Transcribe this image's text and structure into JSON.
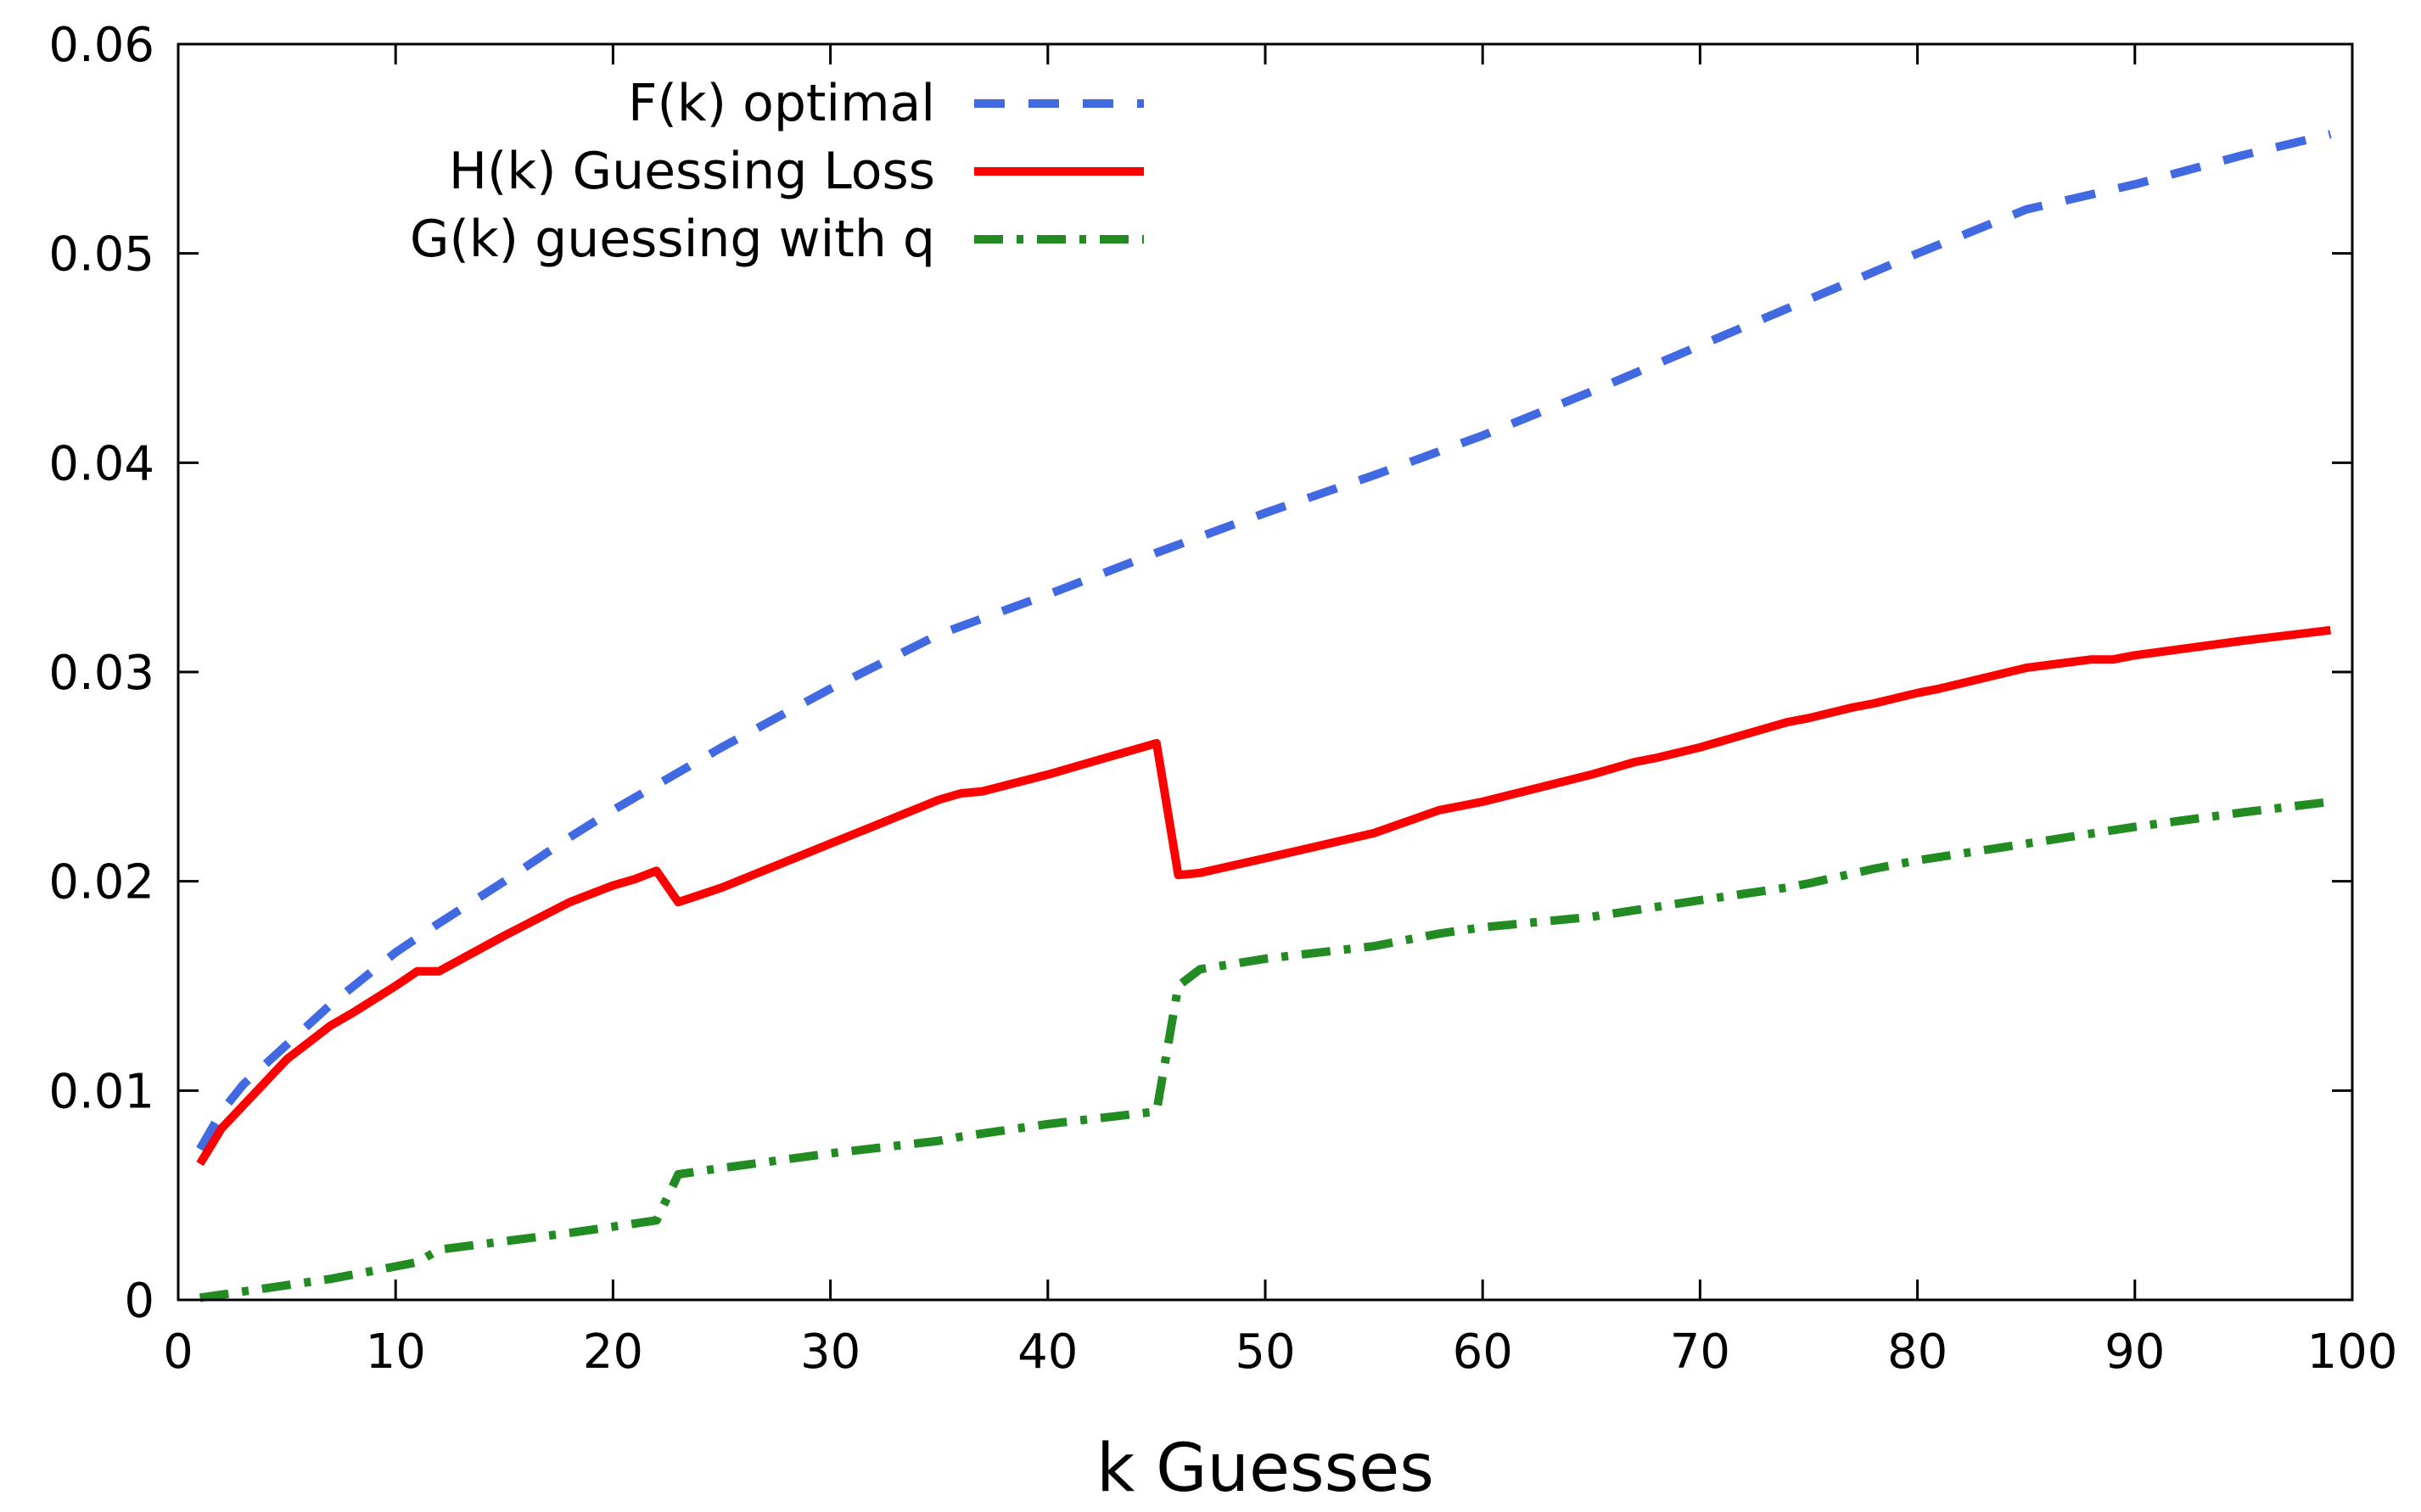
{
  "chart_data": {
    "type": "line",
    "title": "",
    "xlabel": "k Guesses",
    "ylabel": "",
    "xlim": [
      0,
      100
    ],
    "ylim": [
      0,
      0.06
    ],
    "xticks": [
      0,
      10,
      20,
      30,
      40,
      50,
      60,
      70,
      80,
      90,
      100
    ],
    "xtick_labels": [
      "0",
      "10",
      "20",
      "30",
      "40",
      "50",
      "60",
      "70",
      "80",
      "90",
      "100"
    ],
    "yticks": [
      0,
      0.01,
      0.02,
      0.03,
      0.04,
      0.05,
      0.06
    ],
    "ytick_labels": [
      "0",
      "0.01",
      "0.02",
      "0.03",
      "0.04",
      "0.05",
      "0.06"
    ],
    "grid": false,
    "legend_position": "top-left",
    "series": [
      {
        "name": "F(k) optimal",
        "color": "#4169e1",
        "style": "dashed",
        "x": [
          1,
          2,
          3,
          5,
          7,
          10,
          12,
          15,
          18,
          20,
          25,
          30,
          35,
          40,
          45,
          50,
          55,
          60,
          65,
          70,
          75,
          80,
          85,
          90,
          95,
          99
        ],
        "y": [
          0.0072,
          0.009,
          0.0103,
          0.0122,
          0.0141,
          0.0166,
          0.018,
          0.02,
          0.0221,
          0.0234,
          0.0264,
          0.0292,
          0.0318,
          0.0337,
          0.0357,
          0.0376,
          0.0394,
          0.0413,
          0.0434,
          0.0456,
          0.0478,
          0.05,
          0.0521,
          0.0533,
          0.0547,
          0.0557
        ]
      },
      {
        "name": "H(k) Guessing Loss",
        "color": "#ff0000",
        "style": "solid",
        "x": [
          1,
          2,
          3,
          5,
          7,
          8,
          10,
          11,
          12,
          15,
          18,
          20,
          21,
          22,
          23,
          25,
          30,
          35,
          36,
          37,
          40,
          45,
          46,
          47,
          50,
          55,
          58,
          59,
          60,
          65,
          67,
          68,
          70,
          74,
          75,
          77,
          78,
          80,
          81,
          85,
          88,
          89,
          90,
          95,
          99
        ],
        "y": [
          0.0065,
          0.0082,
          0.0093,
          0.0115,
          0.0131,
          0.0137,
          0.015,
          0.0157,
          0.0157,
          0.0174,
          0.019,
          0.0198,
          0.0201,
          0.0205,
          0.019,
          0.0197,
          0.0218,
          0.0239,
          0.0242,
          0.0243,
          0.0251,
          0.0266,
          0.0203,
          0.0204,
          0.0211,
          0.0223,
          0.0234,
          0.0236,
          0.0238,
          0.0251,
          0.0257,
          0.0259,
          0.0264,
          0.0276,
          0.0278,
          0.0283,
          0.0285,
          0.029,
          0.0292,
          0.0302,
          0.0306,
          0.0306,
          0.0308,
          0.0315,
          0.032
        ]
      },
      {
        "name": "G(k) guessing with q",
        "color": "#228b22",
        "style": "dashdot",
        "x": [
          1,
          3,
          5,
          7,
          9,
          11,
          12,
          15,
          18,
          20,
          22,
          23,
          25,
          30,
          35,
          36,
          40,
          45,
          46,
          47,
          50,
          55,
          58,
          60,
          65,
          70,
          74,
          75,
          78,
          80,
          85,
          90,
          95,
          99
        ],
        "y": [
          0.0001,
          0.0004,
          0.0007,
          0.001,
          0.0014,
          0.0018,
          0.0024,
          0.0028,
          0.0032,
          0.0035,
          0.0038,
          0.006,
          0.0063,
          0.007,
          0.0076,
          0.0078,
          0.0084,
          0.009,
          0.015,
          0.0158,
          0.0163,
          0.0169,
          0.0175,
          0.0178,
          0.0183,
          0.0191,
          0.0197,
          0.0199,
          0.0206,
          0.021,
          0.0218,
          0.0226,
          0.0233,
          0.0238
        ]
      }
    ]
  }
}
